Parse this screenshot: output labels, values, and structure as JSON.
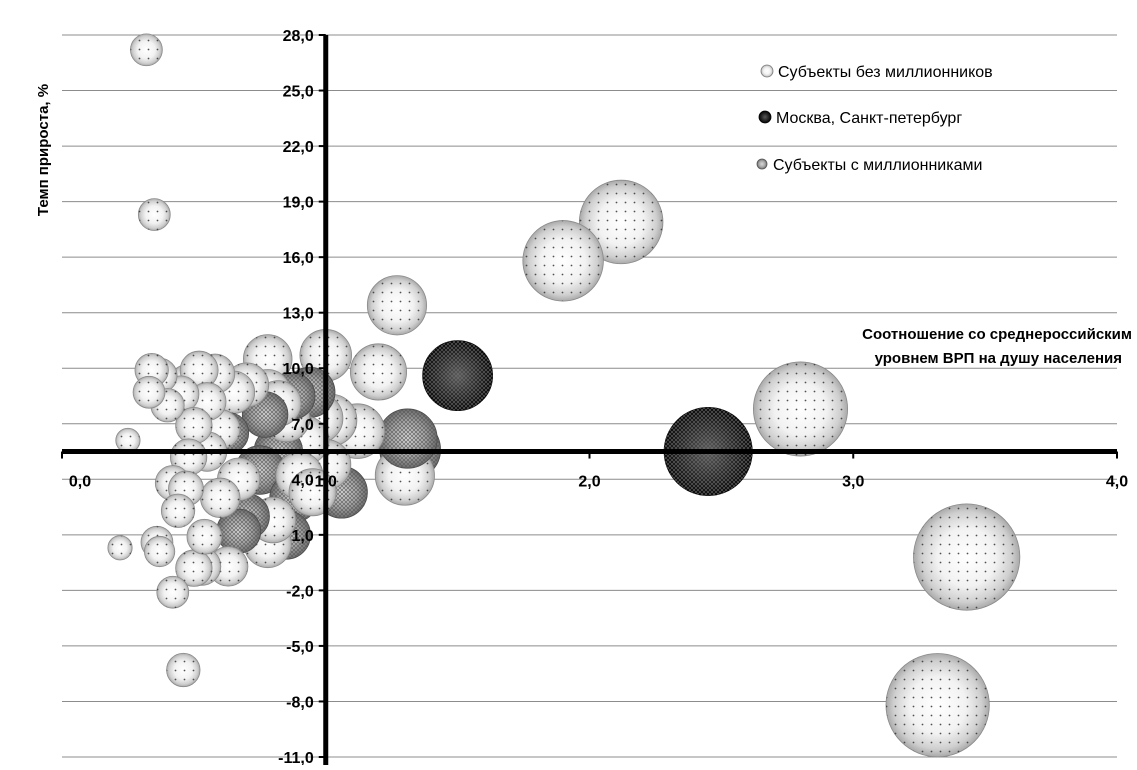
{
  "chart_data": {
    "type": "bubble",
    "ylabel": "Темп прироста, %",
    "xlabel_line1": "Соотношение со среднероссийским",
    "xlabel_line2": "уровнем  ВРП на душу населения",
    "xlim": [
      0,
      4
    ],
    "ylim": [
      -11,
      28
    ],
    "x_ticks": [
      {
        "value": 0,
        "label": "0,0"
      },
      {
        "value": 1,
        "label": "1,0"
      },
      {
        "value": 2,
        "label": "2,0"
      },
      {
        "value": 3,
        "label": "3,0"
      },
      {
        "value": 4,
        "label": "4,0"
      }
    ],
    "y_ticks": [
      {
        "value": 28,
        "label": "28,0"
      },
      {
        "value": 25,
        "label": "25,0"
      },
      {
        "value": 22,
        "label": "22,0"
      },
      {
        "value": 19,
        "label": "19,0"
      },
      {
        "value": 16,
        "label": "16,0"
      },
      {
        "value": 13,
        "label": "13,0"
      },
      {
        "value": 10,
        "label": "10,0"
      },
      {
        "value": 7,
        "label": "7,0"
      },
      {
        "value": 4,
        "label": "4,0"
      },
      {
        "value": 1,
        "label": "1,0"
      },
      {
        "value": -2,
        "label": "-2,0"
      },
      {
        "value": -5,
        "label": "-5,0"
      },
      {
        "value": -8,
        "label": "-8,0"
      },
      {
        "value": -11,
        "label": "-11,0"
      }
    ],
    "axis_crossing": {
      "x": 1.0,
      "y": 5.5
    },
    "grid": true,
    "legend_position": "top-right",
    "series": [
      {
        "name": "Субъекты без миллионников",
        "style": "light",
        "points": [
          {
            "x": 0.32,
            "y": 27.2,
            "size": 2.1
          },
          {
            "x": 0.35,
            "y": 18.3,
            "size": 2.1
          },
          {
            "x": 0.25,
            "y": 6.1,
            "size": 1.6
          },
          {
            "x": 0.22,
            "y": 0.3,
            "size": 1.6
          },
          {
            "x": 0.34,
            "y": 9.9,
            "size": 2.2
          },
          {
            "x": 0.37,
            "y": 9.6,
            "size": 2.3
          },
          {
            "x": 0.33,
            "y": 8.7,
            "size": 2.1
          },
          {
            "x": 0.4,
            "y": 8.0,
            "size": 2.2
          },
          {
            "x": 0.45,
            "y": 8.6,
            "size": 2.4
          },
          {
            "x": 0.48,
            "y": 9.2,
            "size": 2.5
          },
          {
            "x": 0.52,
            "y": 9.9,
            "size": 2.5
          },
          {
            "x": 0.58,
            "y": 9.7,
            "size": 2.6
          },
          {
            "x": 0.55,
            "y": 8.2,
            "size": 2.5
          },
          {
            "x": 0.5,
            "y": 6.9,
            "size": 2.4
          },
          {
            "x": 0.6,
            "y": 6.7,
            "size": 2.6
          },
          {
            "x": 0.48,
            "y": 5.2,
            "size": 2.4
          },
          {
            "x": 0.55,
            "y": 5.5,
            "size": 2.6
          },
          {
            "x": 0.42,
            "y": 3.8,
            "size": 2.3
          },
          {
            "x": 0.47,
            "y": 3.5,
            "size": 2.3
          },
          {
            "x": 0.44,
            "y": 2.3,
            "size": 2.2
          },
          {
            "x": 0.36,
            "y": 0.6,
            "size": 2.1
          },
          {
            "x": 0.37,
            "y": 0.1,
            "size": 2.0
          },
          {
            "x": 0.42,
            "y": -2.1,
            "size": 2.1
          },
          {
            "x": 0.54,
            "y": 0.9,
            "size": 2.3
          },
          {
            "x": 0.53,
            "y": -0.7,
            "size": 2.5
          },
          {
            "x": 0.63,
            "y": -0.7,
            "size": 2.6
          },
          {
            "x": 0.6,
            "y": 3.0,
            "size": 2.6
          },
          {
            "x": 0.67,
            "y": 4.0,
            "size": 2.8
          },
          {
            "x": 0.65,
            "y": 8.7,
            "size": 2.8
          },
          {
            "x": 0.7,
            "y": 9.1,
            "size": 2.9
          },
          {
            "x": 0.78,
            "y": 8.7,
            "size": 3.0
          },
          {
            "x": 0.78,
            "y": 10.5,
            "size": 3.2
          },
          {
            "x": 0.82,
            "y": 8.1,
            "size": 3.0
          },
          {
            "x": 0.85,
            "y": 7.3,
            "size": 3.1
          },
          {
            "x": 0.92,
            "y": 6.1,
            "size": 3.2
          },
          {
            "x": 1.0,
            "y": 10.7,
            "size": 3.4
          },
          {
            "x": 0.97,
            "y": 7.3,
            "size": 3.3
          },
          {
            "x": 1.02,
            "y": 7.2,
            "size": 3.4
          },
          {
            "x": 1.12,
            "y": 6.6,
            "size": 3.6
          },
          {
            "x": 1.2,
            "y": 9.8,
            "size": 3.7
          },
          {
            "x": 1.27,
            "y": 13.4,
            "size": 3.9
          },
          {
            "x": 1.0,
            "y": 4.8,
            "size": 3.3
          },
          {
            "x": 0.9,
            "y": 4.2,
            "size": 3.1
          },
          {
            "x": 0.8,
            "y": 1.8,
            "size": 3.0
          },
          {
            "x": 0.78,
            "y": 0.5,
            "size": 3.1
          },
          {
            "x": 0.95,
            "y": 3.3,
            "size": 3.1
          },
          {
            "x": 1.3,
            "y": 4.2,
            "size": 3.9
          },
          {
            "x": 0.5,
            "y": -0.8,
            "size": 2.4
          },
          {
            "x": 0.46,
            "y": -6.3,
            "size": 2.2
          },
          {
            "x": 1.9,
            "y": 15.8,
            "size": 5.3
          },
          {
            "x": 2.12,
            "y": 17.9,
            "size": 5.5
          },
          {
            "x": 2.8,
            "y": 7.8,
            "size": 6.2
          },
          {
            "x": 3.43,
            "y": -0.2,
            "size": 7.0
          },
          {
            "x": 3.32,
            "y": -8.2,
            "size": 6.8
          }
        ]
      },
      {
        "name": "Москва, Санкт-петербург",
        "style": "dark",
        "points": [
          {
            "x": 1.5,
            "y": 9.6,
            "size": 4.6
          },
          {
            "x": 2.45,
            "y": 5.5,
            "size": 5.8
          }
        ]
      },
      {
        "name": "Субъекты с миллионниками",
        "style": "mid",
        "points": [
          {
            "x": 0.63,
            "y": 6.5,
            "size": 2.7
          },
          {
            "x": 0.77,
            "y": 7.5,
            "size": 3.0
          },
          {
            "x": 0.87,
            "y": 8.5,
            "size": 3.1
          },
          {
            "x": 0.94,
            "y": 8.7,
            "size": 3.3
          },
          {
            "x": 0.82,
            "y": 5.5,
            "size": 3.2
          },
          {
            "x": 0.75,
            "y": 4.5,
            "size": 3.2
          },
          {
            "x": 0.88,
            "y": 3.0,
            "size": 3.2
          },
          {
            "x": 0.7,
            "y": 2.0,
            "size": 3.0
          },
          {
            "x": 0.67,
            "y": 1.2,
            "size": 2.9
          },
          {
            "x": 0.85,
            "y": 1.0,
            "size": 3.2
          },
          {
            "x": 1.06,
            "y": 3.3,
            "size": 3.4
          },
          {
            "x": 1.32,
            "y": 5.6,
            "size": 4.0
          },
          {
            "x": 1.31,
            "y": 6.2,
            "size": 3.9
          }
        ]
      }
    ]
  }
}
